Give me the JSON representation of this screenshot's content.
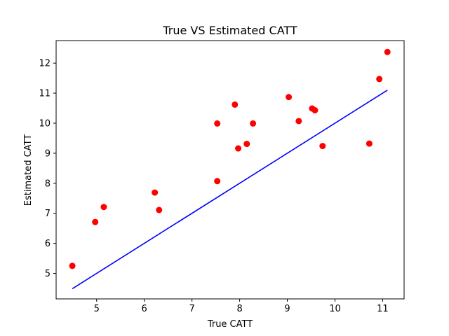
{
  "chart_data": {
    "type": "scatter",
    "title": "True VS Estimated CATT",
    "xlabel": "True CATT",
    "ylabel": "Estimated CATT",
    "xlim": [
      4.15,
      11.45
    ],
    "ylim": [
      4.15,
      12.75
    ],
    "xticks": [
      5,
      6,
      7,
      8,
      9,
      10,
      11
    ],
    "yticks": [
      5,
      6,
      7,
      8,
      9,
      10,
      11,
      12
    ],
    "grid": false,
    "series": [
      {
        "type": "scatter",
        "color": "#ff0000",
        "x": [
          4.49,
          4.97,
          5.15,
          6.22,
          6.31,
          7.53,
          7.53,
          7.9,
          7.97,
          8.15,
          8.28,
          9.03,
          9.24,
          9.52,
          9.58,
          9.74,
          10.72,
          10.93,
          11.1
        ],
        "y": [
          5.25,
          6.71,
          7.21,
          7.69,
          7.11,
          8.07,
          9.99,
          10.62,
          9.16,
          9.31,
          9.99,
          10.87,
          10.07,
          10.49,
          10.43,
          9.24,
          9.32,
          11.47,
          12.37
        ]
      },
      {
        "type": "line",
        "color": "#0000ff",
        "x": [
          4.49,
          11.1
        ],
        "y": [
          4.49,
          11.1
        ]
      }
    ]
  }
}
